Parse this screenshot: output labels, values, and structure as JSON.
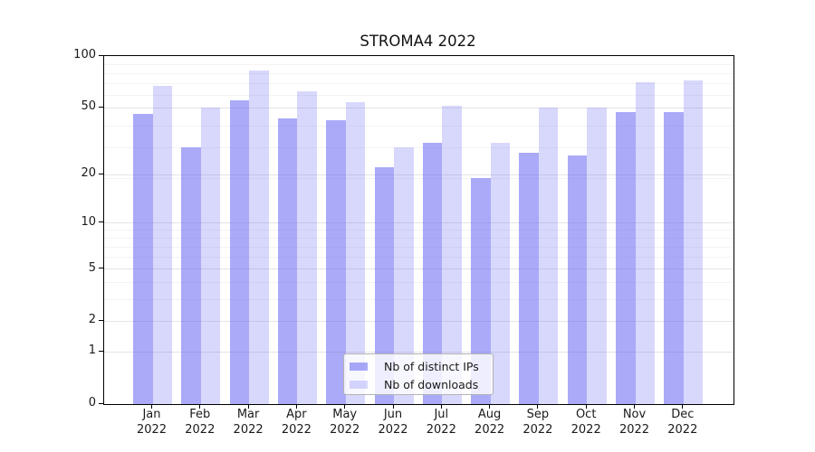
{
  "chart_data": {
    "type": "bar",
    "title": "STROMA4 2022",
    "categories": [
      "Jan",
      "Feb",
      "Mar",
      "Apr",
      "May",
      "Jun",
      "Jul",
      "Aug",
      "Sep",
      "Oct",
      "Nov",
      "Dec"
    ],
    "x_year_label": "2022",
    "series": [
      {
        "name": "Nb of distinct IPs",
        "color": "rgba(100,100,242,0.55)",
        "values": [
          46,
          29,
          55,
          43,
          42,
          22,
          31,
          19,
          27,
          26,
          47,
          47
        ]
      },
      {
        "name": "Nb of downloads",
        "color": "rgba(100,100,242,0.25)",
        "values": [
          67,
          50,
          82,
          62,
          54,
          29,
          51,
          31,
          50,
          50,
          70,
          72
        ]
      }
    ],
    "y_axis": {
      "scale": "log1p",
      "ticks": [
        0,
        1,
        2,
        5,
        10,
        20,
        50,
        100
      ],
      "minor_ticks": [
        3,
        4,
        6,
        7,
        8,
        9,
        19,
        29,
        39,
        59,
        69,
        79,
        89
      ],
      "ylim": [
        0,
        100
      ]
    },
    "grid": true,
    "legend_position": "lower center",
    "colors": {
      "bar_base": "#6464f2",
      "grid_major": "#e4e4e4",
      "grid_minor": "#f3f3f3",
      "axis": "#000000",
      "text": "#1a1a1a"
    }
  }
}
